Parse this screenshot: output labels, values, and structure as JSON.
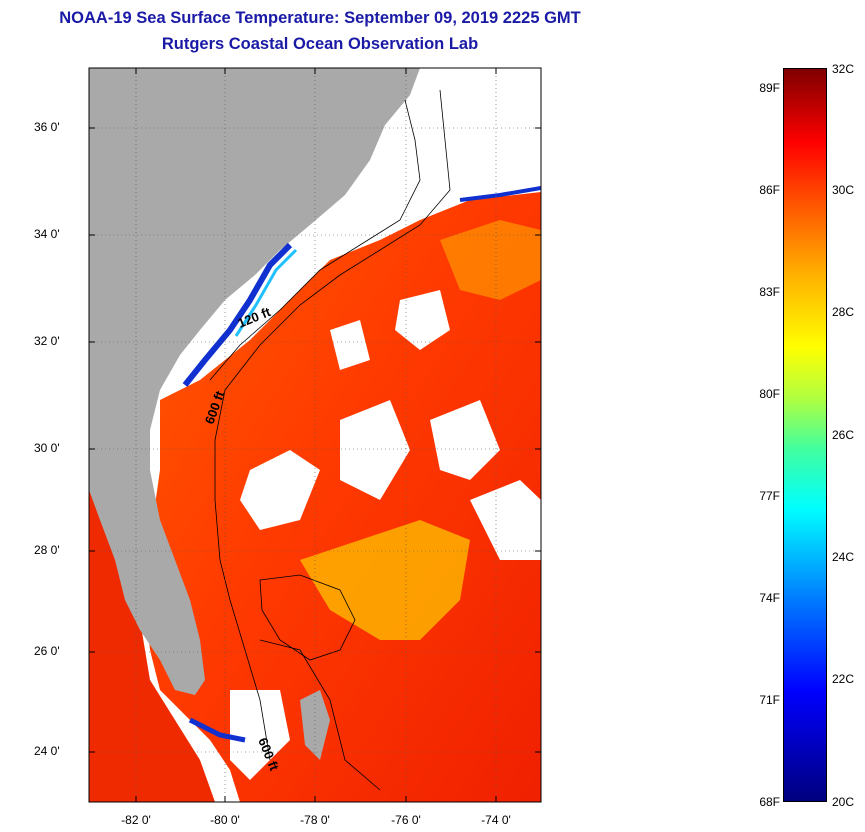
{
  "header": {
    "title": "NOAA-19 Sea Surface Temperature:  September 09, 2019 2225 GMT",
    "subtitle": "Rutgers Coastal Ocean Observation Lab"
  },
  "map": {
    "region": "Southeast US coast / Florida / Bahamas",
    "latitude_ticks": [
      "36 0'",
      "34 0'",
      "32 0'",
      "30 0'",
      "28 0'",
      "26 0'",
      "24 0'"
    ],
    "longitude_ticks": [
      "-82 0'",
      "-80 0'",
      "-78 0'",
      "-76 0'",
      "-74 0'"
    ],
    "contour_labels": [
      "120 ft",
      "600 ft",
      "600 ft"
    ],
    "colors": {
      "land": "#a9a9a9",
      "cloud": "#ffffff",
      "warm_water": "#ff4a00",
      "hot_water": "#e81e00",
      "cool_water": "#ffcc00",
      "frame": "#000000"
    }
  },
  "colorbar": {
    "fahrenheit": [
      "89F",
      "86F",
      "83F",
      "80F",
      "77F",
      "74F",
      "71F",
      "68F"
    ],
    "celsius": [
      "32C",
      "30C",
      "28C",
      "26C",
      "24C",
      "22C",
      "20C"
    ],
    "range_c": [
      20,
      32
    ],
    "range_f": [
      68,
      89
    ]
  }
}
